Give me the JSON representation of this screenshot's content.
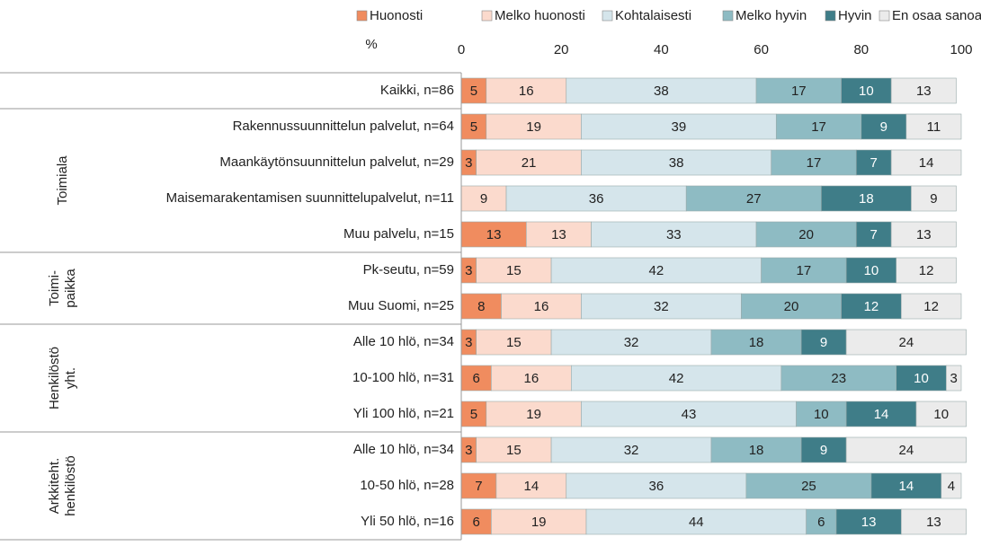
{
  "chart_data": {
    "type": "stacked-bar-horizontal",
    "x_label": "%",
    "xlim": [
      0,
      100
    ],
    "xticks": [
      0,
      20,
      40,
      60,
      80,
      100
    ],
    "legend": "top",
    "groups": [
      {
        "label": null,
        "categories": [
          "Kaikki, n=86"
        ]
      },
      {
        "label": [
          "Toimiala"
        ],
        "categories": [
          "Rakennussuunnittelun palvelut, n=64",
          "Maankäytönsuunnittelun palvelut, n=29",
          "Maisemarakentamisen suunnittelupalvelut, n=11",
          "Muu palvelu, n=15"
        ]
      },
      {
        "label": [
          "Toimi-",
          "paikka"
        ],
        "categories": [
          "Pk-seutu, n=59",
          "Muu Suomi, n=25"
        ]
      },
      {
        "label": [
          "Henkilöstö",
          "yht."
        ],
        "categories": [
          "Alle 10 hlö, n=34",
          "10-100 hlö, n=31",
          "Yli 100 hlö, n=21"
        ]
      },
      {
        "label": [
          "Arkkiteht.",
          "henkilöstö"
        ],
        "categories": [
          "Alle 10 hlö, n=34",
          "10-50 hlö, n=28",
          "Yli 50 hlö, n=16"
        ]
      }
    ],
    "series": [
      {
        "name": "Huonosti",
        "color": "#f08c5f",
        "text_color": "#222",
        "values": [
          5,
          5,
          3,
          null,
          13,
          3,
          8,
          3,
          6,
          5,
          3,
          7,
          6
        ]
      },
      {
        "name": "Melko huonosti",
        "color": "#fbdacd",
        "text_color": "#222",
        "values": [
          16,
          19,
          21,
          9,
          13,
          15,
          16,
          15,
          16,
          19,
          15,
          14,
          19
        ]
      },
      {
        "name": "Kohtalaisesti",
        "color": "#d5e5eb",
        "text_color": "#222",
        "values": [
          38,
          39,
          38,
          36,
          33,
          42,
          32,
          32,
          42,
          43,
          32,
          36,
          44
        ]
      },
      {
        "name": "Melko hyvin",
        "color": "#8ebbc3",
        "text_color": "#222",
        "values": [
          17,
          17,
          17,
          27,
          20,
          17,
          20,
          18,
          23,
          10,
          18,
          25,
          6
        ]
      },
      {
        "name": "Hyvin",
        "color": "#3f7d88",
        "text_color": "#fff",
        "values": [
          10,
          9,
          7,
          18,
          7,
          10,
          12,
          9,
          10,
          14,
          9,
          14,
          13
        ]
      },
      {
        "name": "En osaa sanoa",
        "color": "#ebebeb",
        "text_color": "#222",
        "values": [
          13,
          11,
          14,
          9,
          13,
          12,
          12,
          24,
          3,
          10,
          24,
          4,
          13
        ]
      }
    ]
  }
}
